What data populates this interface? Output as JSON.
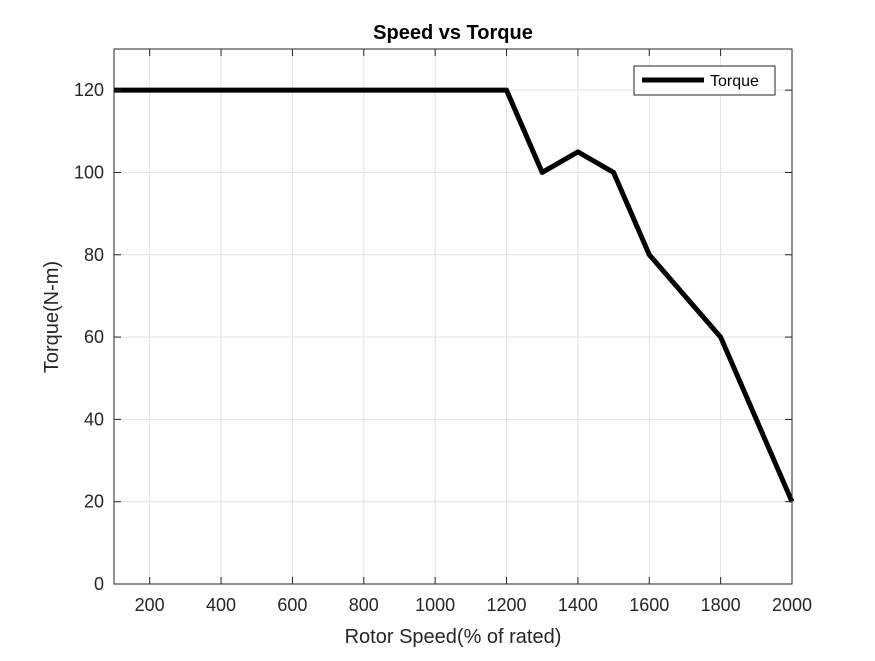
{
  "chart_data": {
    "type": "line",
    "title": "Speed vs Torque",
    "xlabel": "Rotor Speed(% of rated)",
    "ylabel": "Torque(N-m)",
    "xlim": [
      100,
      2000
    ],
    "ylim": [
      0,
      130
    ],
    "xticks": [
      200,
      400,
      600,
      800,
      1000,
      1200,
      1400,
      1600,
      1800,
      2000
    ],
    "yticks": [
      0,
      20,
      40,
      60,
      80,
      100,
      120
    ],
    "grid": true,
    "legend_position": "top-right",
    "series": [
      {
        "name": "Torque",
        "color": "#000000",
        "x": [
          100,
          200,
          400,
          600,
          800,
          1000,
          1200,
          1300,
          1400,
          1500,
          1600,
          1800,
          2000
        ],
        "y": [
          120,
          120,
          120,
          120,
          120,
          120,
          120,
          100,
          105,
          100,
          80,
          60,
          20
        ]
      }
    ]
  }
}
